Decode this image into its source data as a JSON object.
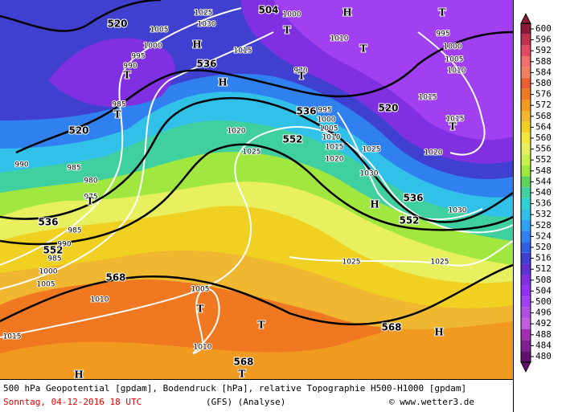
{
  "map_labels": {
    "geopotential": [
      "520",
      "536",
      "520",
      "536",
      "552",
      "520",
      "536",
      "552",
      "536",
      "552",
      "568",
      "568",
      "568",
      "504"
    ],
    "pressure": [
      "1005",
      "1000",
      "995",
      "990",
      "1015",
      "1010",
      "1000",
      "995",
      "1000",
      "1005",
      "1010",
      "1015",
      "1020",
      "1015",
      "1020",
      "1025",
      "995",
      "1000",
      "1005",
      "1010",
      "1015",
      "1020",
      "1025",
      "1030",
      "1030",
      "990",
      "985",
      "980",
      "975",
      "985",
      "990",
      "985",
      "1000",
      "1005",
      "1010",
      "1025",
      "1025",
      "1005",
      "1010",
      "1015",
      "1025",
      "1030",
      "985",
      "970"
    ],
    "centers": [
      "H",
      "T",
      "T",
      "T",
      "T",
      "H",
      "T",
      "T",
      "T",
      "H",
      "T",
      "H",
      "T",
      "T",
      "H",
      "H",
      "T"
    ]
  },
  "colorbar": {
    "ticks": [
      600,
      596,
      592,
      588,
      584,
      580,
      576,
      572,
      568,
      564,
      560,
      556,
      552,
      548,
      544,
      540,
      536,
      532,
      528,
      524,
      520,
      516,
      512,
      508,
      504,
      500,
      496,
      492,
      488,
      484,
      480
    ],
    "colors": [
      "#8b1a3a",
      "#c03050",
      "#e04a60",
      "#f07070",
      "#f08060",
      "#e86030",
      "#f07820",
      "#f09a20",
      "#f0b830",
      "#f0d020",
      "#f0e840",
      "#e8f060",
      "#c8f050",
      "#a0e840",
      "#60d060",
      "#40d0a0",
      "#30d0d0",
      "#30c0e8",
      "#30a0f0",
      "#3080f0",
      "#3060e0",
      "#4040d0",
      "#6030d0",
      "#8030e0",
      "#9030f0",
      "#a040f0",
      "#b050e0",
      "#c060e0",
      "#a030b0",
      "#802090",
      "#601070"
    ]
  },
  "footer": {
    "line1": "500 hPa Geopotential [gpdam], Bodendruck [hPa], relative Topographie H500-H1000 [gpdam]",
    "date": "Sonntag, 04-12-2016  18 UTC",
    "model": "(GFS)  (Analyse)",
    "credit": "© www.wetter3.de"
  }
}
